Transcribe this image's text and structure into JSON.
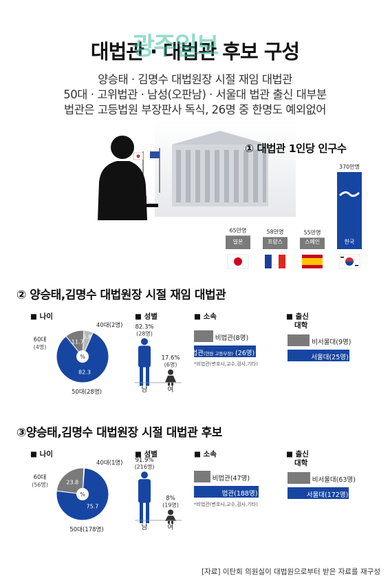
{
  "colors": {
    "blue": "#1746a2",
    "gray": "#7a7a7a",
    "light_gray": "#b8b8b8"
  },
  "header": {
    "title": "대법관 · 대법관 후보 구성",
    "watermark": "광주일보",
    "lines": [
      "양승태 · 김명수 대법원장 시절 재임 대법관",
      "50대 · 고위법관 · 남성(오판남) · 서울대 법관 출신 대부분",
      "법관은 고등법원 부장판사 독식, 26명 중 한명도 예외없어"
    ]
  },
  "section1": {
    "title": "① 대법관 1인당 인구수"
  },
  "section2": {
    "title": "② 양승태,김명수 대법원장 시절 재임 대법관"
  },
  "section3": {
    "title": "③양승태,김명수 대법원장 시절 대법관 후보"
  },
  "panel_titles": {
    "age": "■ 나이",
    "gender": "■ 성별",
    "affiliation": "■ 소속",
    "university_l1": "■ 출신",
    "university_l2": "대학"
  },
  "gender_labels": {
    "male": "남",
    "female": "여"
  },
  "source": "[자료] 이탄희 의원실이 대법원으로부터 받은 자료를 재구성",
  "chart_data": [
    {
      "type": "bar",
      "title": "① 대법관 1인당 인구수",
      "categories": [
        "일본",
        "프랑스",
        "스페인",
        "한국"
      ],
      "values": [
        65,
        58,
        55,
        370
      ],
      "value_labels": [
        "65만명",
        "58만명",
        "55만명",
        "370만명"
      ],
      "flags": [
        "jp",
        "fr",
        "es",
        "kr"
      ],
      "ylim": [
        0,
        370
      ]
    },
    {
      "type": "pie",
      "title": "② 나이",
      "center_label": "%",
      "slices": [
        {
          "label": "50대",
          "count_label": "(28명)",
          "value": 82.3,
          "value_label": "82.3",
          "color": "#1746a2"
        },
        {
          "label": "60대",
          "count_label": "(4명)",
          "value": 11.7,
          "value_label": "11.7",
          "color": "#7a7a7a"
        },
        {
          "label": "40대",
          "count_label": "(2명)",
          "value": 5.8,
          "value_label": "5.8",
          "color": "#b8b8b8"
        }
      ]
    },
    {
      "type": "bar",
      "title": "② 성별",
      "categories": [
        "남",
        "여"
      ],
      "values": [
        82.3,
        17.6
      ],
      "value_labels": [
        "82.3%",
        "17.6%"
      ],
      "count_labels": [
        "(28명)",
        "(6명)"
      ]
    },
    {
      "type": "bar",
      "title": "② 소속",
      "categories": [
        "비법관",
        "법관"
      ],
      "values": [
        8,
        26
      ],
      "labels": [
        "비법관(8명)",
        "법관"
      ],
      "sub_label": "(현원 고등부장)",
      "count_label": "(26명)",
      "footnote": "*비법관(변호사,교수,검사,기타)"
    },
    {
      "type": "bar",
      "title": "② 출신 대학",
      "categories": [
        "비서울대",
        "서울대"
      ],
      "values": [
        9,
        25
      ],
      "labels": [
        "비서울대(9명)",
        "서울대(25명)"
      ]
    },
    {
      "type": "pie",
      "title": "③ 나이",
      "center_label": "%",
      "slices": [
        {
          "label": "50대",
          "count_label": "(178명)",
          "value": 75.7,
          "value_label": "75.7",
          "color": "#1746a2"
        },
        {
          "label": "60대",
          "count_label": "(56명)",
          "value": 23.8,
          "value_label": "23.8",
          "color": "#7a7a7a"
        },
        {
          "label": "40대",
          "count_label": "(1명)",
          "value": 0.4,
          "value_label": "0.4",
          "color": "#b8b8b8"
        }
      ]
    },
    {
      "type": "bar",
      "title": "③ 성별",
      "categories": [
        "남",
        "여"
      ],
      "values": [
        91.9,
        8
      ],
      "value_labels": [
        "91.9%",
        "8%"
      ],
      "count_labels": [
        "(216명)",
        "(19명)"
      ]
    },
    {
      "type": "bar",
      "title": "③ 소속",
      "categories": [
        "비법관",
        "법관"
      ],
      "values": [
        47,
        188
      ],
      "labels": [
        "비법관(47명)",
        "법관(188명)"
      ],
      "footnote": "*비법관(변호사,교수,검사,기타)"
    },
    {
      "type": "bar",
      "title": "③ 출신 대학",
      "categories": [
        "비서울대",
        "서울대"
      ],
      "values": [
        63,
        172
      ],
      "labels": [
        "비서울대(63명)",
        "서울대(172명)"
      ]
    }
  ]
}
